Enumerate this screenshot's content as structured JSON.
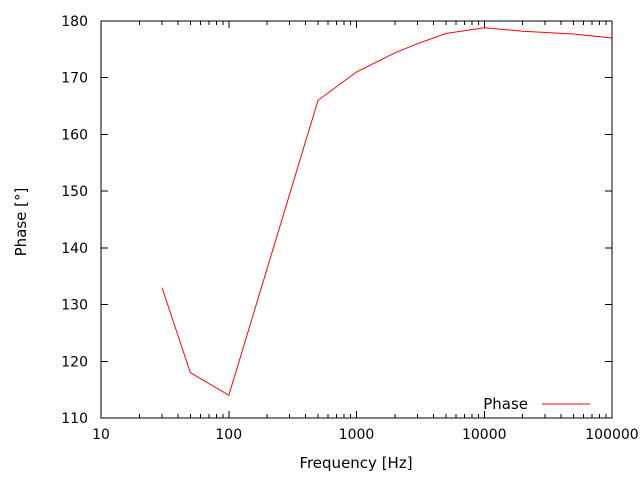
{
  "chart_data": {
    "type": "line",
    "title": "",
    "xlabel": "Frequency [Hz]",
    "ylabel": "Phase [°]",
    "x_scale": "log",
    "y_scale": "linear",
    "xlim": [
      10,
      100000
    ],
    "ylim": [
      110,
      180
    ],
    "grid": false,
    "legend_position": "bottom-right-inside",
    "x_major_ticks": [
      10,
      100,
      1000,
      10000,
      100000
    ],
    "x_tick_labels": [
      "10",
      "100",
      "1000",
      "10000",
      "100000"
    ],
    "x_minor_ticks_per_decade": [
      2,
      3,
      4,
      5,
      6,
      7,
      8,
      9
    ],
    "y_major_ticks": [
      110,
      120,
      130,
      140,
      150,
      160,
      170,
      180
    ],
    "y_tick_labels": [
      "110",
      "120",
      "130",
      "140",
      "150",
      "160",
      "170",
      "180"
    ],
    "series": [
      {
        "name": "Phase",
        "color": "#ff0000",
        "x": [
          30,
          50,
          100,
          500,
          1000,
          2000,
          3000,
          5000,
          10000,
          20000,
          50000,
          100000
        ],
        "y": [
          133,
          118,
          114,
          166,
          171,
          174.4,
          176,
          177.8,
          178.8,
          178.2,
          177.7,
          177
        ]
      }
    ]
  },
  "colors": {
    "background": "#ffffff",
    "axis": "#000000",
    "text": "#000000",
    "line": "#ff0000"
  }
}
